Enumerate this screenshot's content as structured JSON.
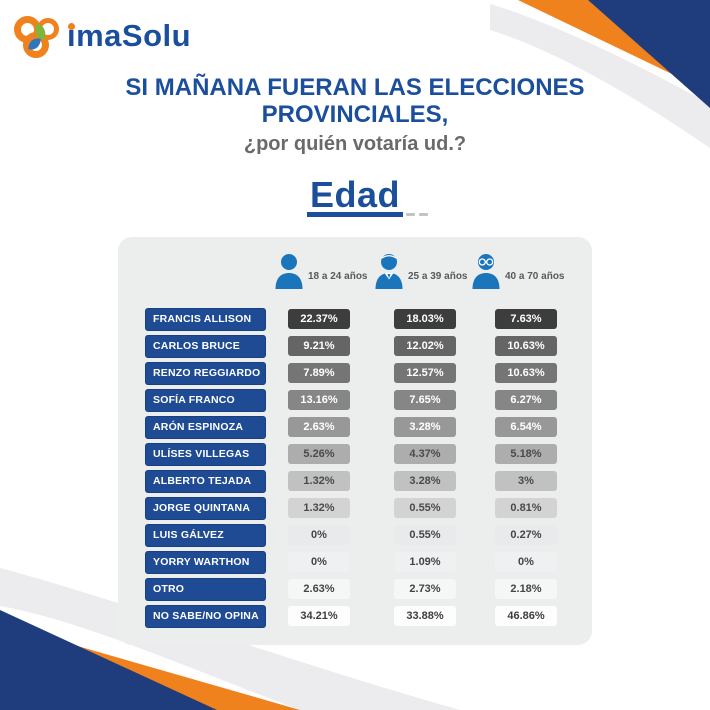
{
  "logo": {
    "text": "imaSolu"
  },
  "header": {
    "title_line1": "SI MAÑANA FUERAN LAS ELECCIONES",
    "title_line2": "PROVINCIALES,",
    "subtitle": "¿por quién votaría ud.?"
  },
  "section": {
    "heading": "Edad"
  },
  "colors": {
    "brand_blue": "#1b4e9b",
    "corner_navy": "#1f3d7c",
    "corner_orange": "#f0821e",
    "icon_blue": "#1b75bb",
    "panel_gray": "#eceded",
    "name_box_blue": "#1e4b94",
    "subtitle_gray": "#6a6a6a"
  },
  "chart_data": {
    "type": "table",
    "title": "Edad",
    "question": "SI MAÑANA FUERAN LAS ELECCIONES PROVINCIALES, ¿por quién votaría ud.?",
    "columns": [
      {
        "label": "18 a 24 años",
        "icon": "person-icon"
      },
      {
        "label": "25 a 39 años",
        "icon": "person-tie-icon"
      },
      {
        "label": "40 a 70 años",
        "icon": "person-glasses-icon"
      }
    ],
    "rows": [
      {
        "label": "FRANCIS ALLISON",
        "values": [
          "22.37%",
          "18.03%",
          "7.63%"
        ],
        "cell_bg": "#3d3d3d",
        "cell_fg": "#ffffff"
      },
      {
        "label": "CARLOS BRUCE",
        "values": [
          "9.21%",
          "12.02%",
          "10.63%"
        ],
        "cell_bg": "#656565",
        "cell_fg": "#ffffff"
      },
      {
        "label": "RENZO REGGIARDO",
        "values": [
          "7.89%",
          "12.57%",
          "10.63%"
        ],
        "cell_bg": "#757575",
        "cell_fg": "#ffffff"
      },
      {
        "label": "SOFÍA FRANCO",
        "values": [
          "13.16%",
          "7.65%",
          "6.27%"
        ],
        "cell_bg": "#868686",
        "cell_fg": "#ffffff"
      },
      {
        "label": "ARÓN ESPINOZA",
        "values": [
          "2.63%",
          "3.28%",
          "6.54%"
        ],
        "cell_bg": "#989898",
        "cell_fg": "#ffffff"
      },
      {
        "label": "ULÍSES VILLEGAS",
        "values": [
          "5.26%",
          "4.37%",
          "5.18%"
        ],
        "cell_bg": "#adadad",
        "cell_fg": "#4a4a4a"
      },
      {
        "label": "ALBERTO TEJADA",
        "values": [
          "1.32%",
          "3.28%",
          "3%"
        ],
        "cell_bg": "#c1c1c1",
        "cell_fg": "#4a4a4a"
      },
      {
        "label": "JORGE QUINTANA",
        "values": [
          "1.32%",
          "0.55%",
          "0.81%"
        ],
        "cell_bg": "#d3d3d3",
        "cell_fg": "#4a4a4a"
      },
      {
        "label": "LUIS GÁLVEZ",
        "values": [
          "0%",
          "0.55%",
          "0.27%"
        ],
        "cell_bg": "#e9eaeb",
        "cell_fg": "#454545"
      },
      {
        "label": "YORRY WARTHON",
        "values": [
          "0%",
          "1.09%",
          "0%"
        ],
        "cell_bg": "#eff0f1",
        "cell_fg": "#454545"
      },
      {
        "label": "OTRO",
        "values": [
          "2.63%",
          "2.73%",
          "2.18%"
        ],
        "cell_bg": "#f5f6f6",
        "cell_fg": "#454545"
      },
      {
        "label": "NO SABE/NO OPINA",
        "values": [
          "34.21%",
          "33.88%",
          "46.86%"
        ],
        "cell_bg": "#fdfdfd",
        "cell_fg": "#3d3d3d"
      }
    ]
  }
}
